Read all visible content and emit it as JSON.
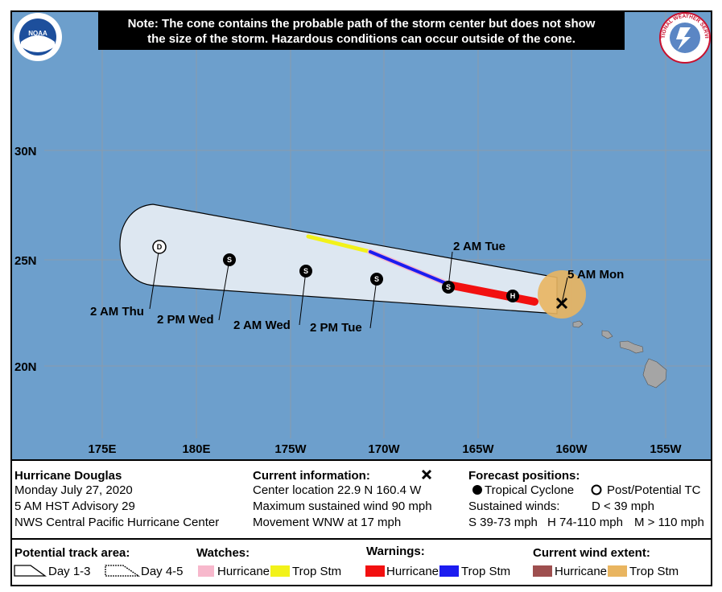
{
  "note": {
    "lines": [
      "Note: The cone contains the probable path of the storm center but does not show",
      "the size of the storm. Hazardous conditions can occur outside of the cone."
    ]
  },
  "logos": {
    "noaa": "NOAA",
    "nws": "NATIONAL WEATHER SERVICE"
  },
  "map": {
    "lat_labels": [
      "30N",
      "25N",
      "20N"
    ],
    "lon_labels": [
      "175E",
      "180E",
      "175W",
      "170W",
      "165W",
      "160W",
      "155W"
    ],
    "forecast_points": [
      {
        "letter": "D",
        "label": "2 AM Thu"
      },
      {
        "letter": "S",
        "label": "2 PM Wed"
      },
      {
        "letter": "S",
        "label": "2 AM Wed"
      },
      {
        "letter": "S",
        "label": "2 PM Tue"
      },
      {
        "letter": "S",
        "label": "2 AM Tue"
      },
      {
        "letter": "H"
      }
    ],
    "current_label": "5 AM Mon"
  },
  "storm": {
    "name": "Hurricane Douglas",
    "date": "Monday July 27, 2020",
    "advisory": "5 AM HST Advisory 29",
    "center": "NWS Central Pacific Hurricane Center"
  },
  "current_info": {
    "title": "Current information:",
    "lines": [
      "Center location 22.9 N 160.4 W",
      "Maximum sustained wind 90 mph",
      "Movement WNW at 17 mph"
    ]
  },
  "forecast_positions": {
    "title": "Forecast positions:",
    "tropical_cyclone": "Tropical Cyclone",
    "post_tc": "Post/Potential TC",
    "sustained": "Sustained winds:",
    "d": "D < 39 mph",
    "s": "S 39-73 mph",
    "h": "H 74-110 mph",
    "m": "M > 110 mph"
  },
  "legend": {
    "track_area": {
      "title": "Potential track area:",
      "day13": "Day 1-3",
      "day45": "Day 4-5"
    },
    "watches": {
      "title": "Watches:",
      "hurricane": "Hurricane",
      "trop_stm": "Trop Stm"
    },
    "warnings": {
      "title": "Warnings:",
      "hurricane": "Hurricane",
      "trop_stm": "Trop Stm"
    },
    "wind_extent": {
      "title": "Current wind extent:",
      "hurricane": "Hurricane",
      "trop_stm": "Trop Stm"
    }
  }
}
